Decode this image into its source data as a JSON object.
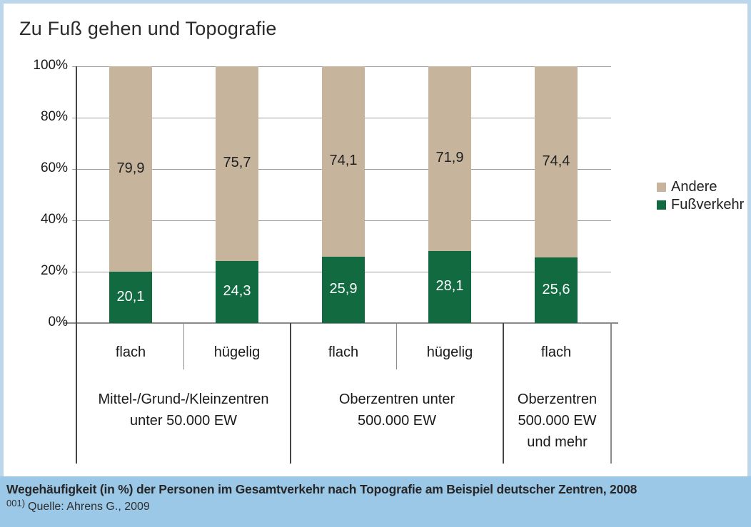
{
  "title": "Zu Fuß gehen und Topografie",
  "colors": {
    "andere": "#c6b59c",
    "fussverkehr": "#126b40",
    "frame": "#bcd7ec",
    "footer_bg": "#9cc8e8"
  },
  "legend": [
    {
      "label": "Andere",
      "color": "#c6b59c"
    },
    {
      "label": "Fußverkehr",
      "color": "#126b40"
    }
  ],
  "chart_data": {
    "type": "bar",
    "stacked": true,
    "unit": "%",
    "ylim": [
      0,
      100
    ],
    "grid": true,
    "legend_position": "right",
    "yticks": [
      "100%",
      "80%",
      "60%",
      "40%",
      "20%",
      "0%"
    ],
    "categories": [
      "flach",
      "hügelig",
      "flach",
      "hügelig",
      "flach"
    ],
    "groups": [
      {
        "label_lines": [
          "Mittel-/Grund-/Kleinzentren",
          "unter 50.000 EW"
        ],
        "bar_indexes": [
          0,
          1
        ]
      },
      {
        "label_lines": [
          "Oberzentren unter",
          "500.000 EW"
        ],
        "bar_indexes": [
          2,
          3
        ]
      },
      {
        "label_lines": [
          "Oberzentren",
          "500.000 EW",
          "und mehr"
        ],
        "bar_indexes": [
          4
        ]
      }
    ],
    "series": [
      {
        "name": "Fußverkehr",
        "values": [
          20.1,
          24.3,
          25.9,
          28.1,
          25.6
        ]
      },
      {
        "name": "Andere",
        "values": [
          79.9,
          75.7,
          74.1,
          71.9,
          74.4
        ]
      }
    ],
    "value_labels": {
      "fussverkehr": [
        "20,1",
        "24,3",
        "25,9",
        "28,1",
        "25,6"
      ],
      "andere": [
        "79,9",
        "75,7",
        "74,1",
        "71,9",
        "74,4"
      ]
    }
  },
  "footer": {
    "caption": "Wegehäufigkeit (in %) der Personen im Gesamtverkehr nach Topografie am Beispiel deutscher Zentren, 2008",
    "footnote_marker": "001)",
    "footnote_text": "Quelle: Ahrens G., 2009"
  }
}
